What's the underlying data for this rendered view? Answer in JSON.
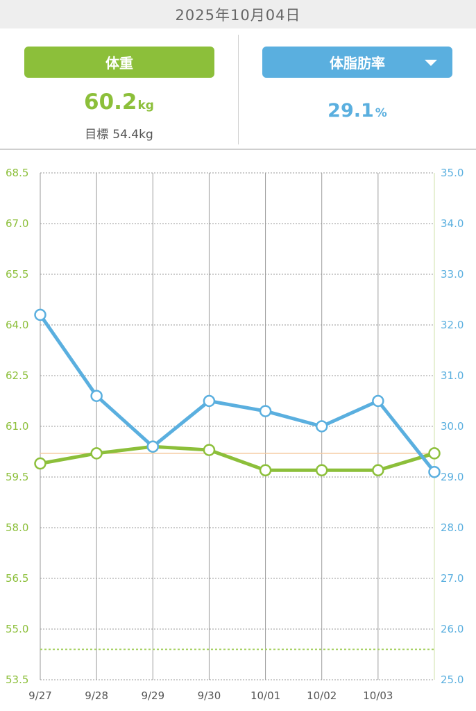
{
  "header": {
    "date": "2025年10月04日"
  },
  "weight_panel": {
    "button_label": "体重",
    "value": "60.2",
    "unit": "kg",
    "goal_label": "目標",
    "goal_value": "54.4kg"
  },
  "fat_panel": {
    "button_label": "体脂肪率",
    "value": "29.1",
    "unit": "%"
  },
  "colors": {
    "weight": "#8cbf3a",
    "fat": "#5aafdf",
    "reference_line": "#f5c9a0",
    "goal_line": "#a7d164"
  },
  "chart_data": {
    "type": "line",
    "x": [
      "9/27",
      "9/28",
      "9/29",
      "9/30",
      "10/01",
      "10/02",
      "10/03",
      ""
    ],
    "series": [
      {
        "name": "体重",
        "axis": "left",
        "values": [
          59.9,
          60.2,
          60.4,
          60.3,
          59.7,
          59.7,
          59.7,
          60.2
        ]
      },
      {
        "name": "体脂肪率",
        "axis": "right",
        "values": [
          32.2,
          30.6,
          29.6,
          30.5,
          30.3,
          30.0,
          30.5,
          29.1
        ]
      }
    ],
    "y_left": {
      "range": [
        53.5,
        68.5
      ],
      "ticks": [
        "53.5",
        "55.0",
        "56.5",
        "58.0",
        "59.5",
        "61.0",
        "62.5",
        "64.0",
        "65.5",
        "67.0",
        "68.5"
      ]
    },
    "y_right": {
      "range": [
        25.0,
        35.0
      ],
      "ticks": [
        "25.0",
        "26.0",
        "27.0",
        "28.0",
        "29.0",
        "30.0",
        "31.0",
        "32.0",
        "33.0",
        "34.0",
        "35.0"
      ]
    },
    "reference_line_weight": 60.2,
    "goal_line_weight": 54.4,
    "grid": true
  }
}
